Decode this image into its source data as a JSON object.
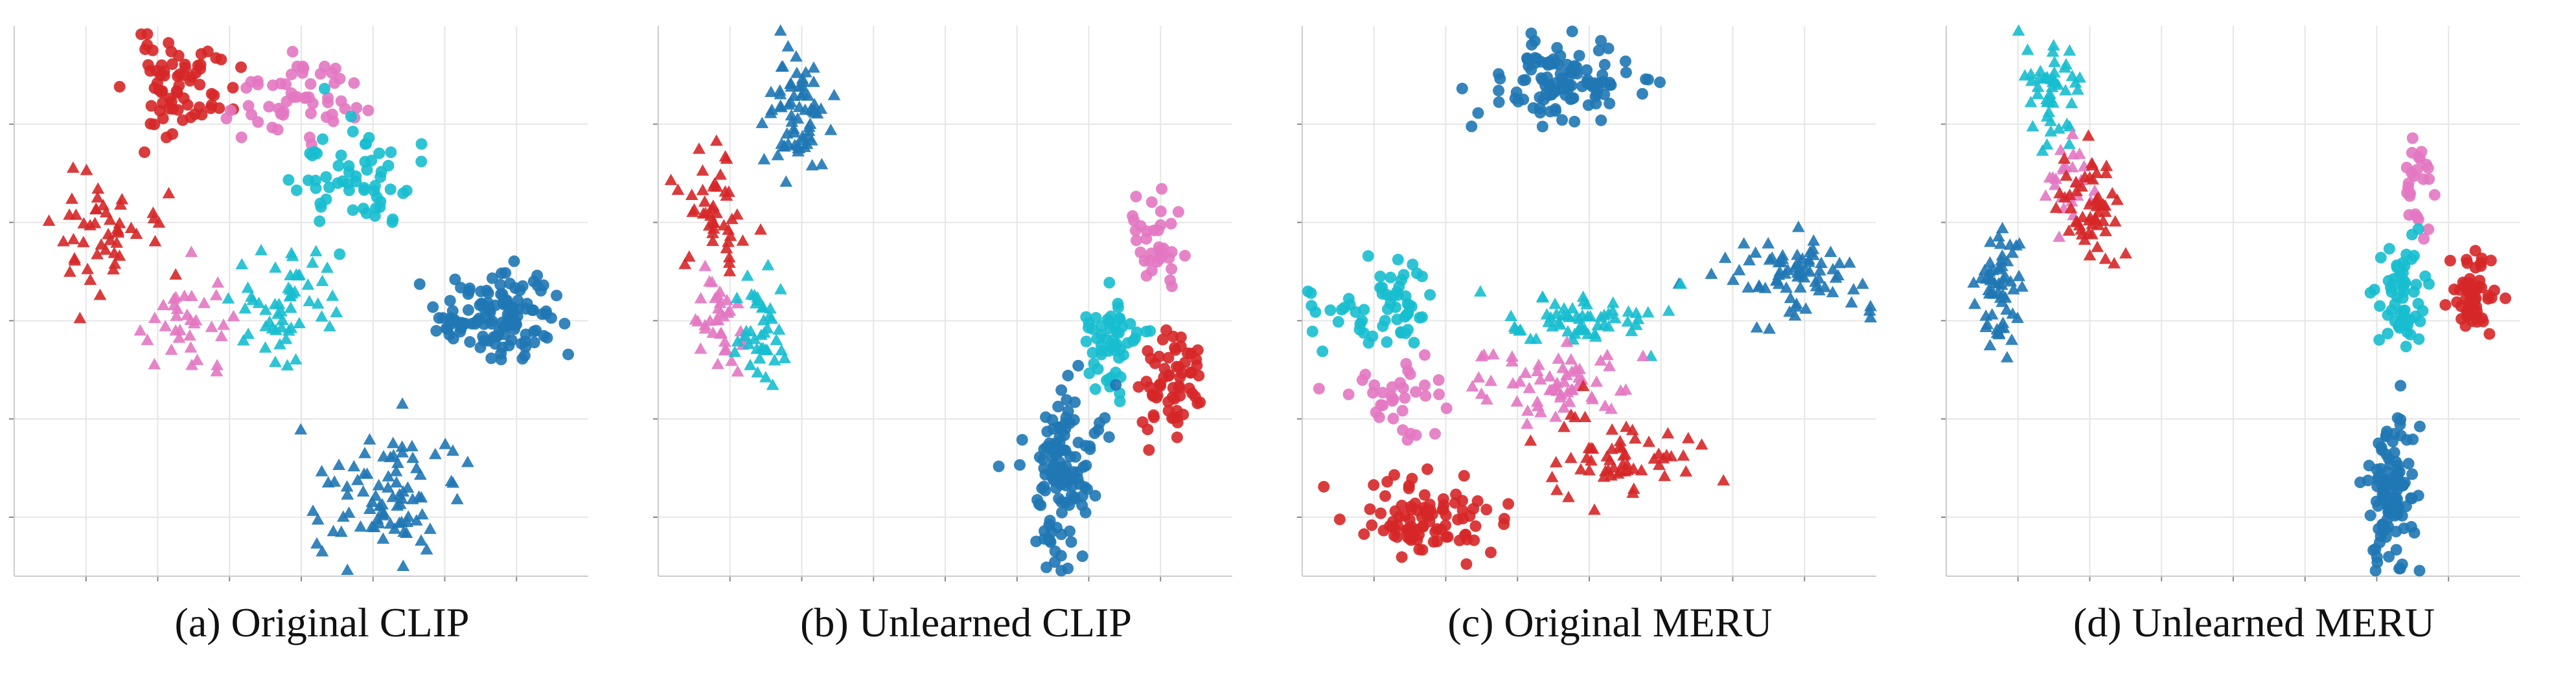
{
  "figure": {
    "description_note": "t-SNE style embeddings, four panels, two classes of markers per color",
    "captions": [
      "(a) Original CLIP",
      "(b) Unlearned CLIP",
      "(c) Original MERU",
      "(d) Unlearned MERU"
    ]
  },
  "colors": {
    "blue": "#1f77b4",
    "red": "#d62728",
    "pink": "#e377c2",
    "cyan": "#17becf",
    "grid": "#e6e6e6",
    "axis": "#cccccc"
  },
  "chart_data": [
    {
      "type": "scatter",
      "title": "(a) Original CLIP",
      "xlabel": "",
      "ylabel": "",
      "xlim": [
        0,
        100
      ],
      "ylim": [
        0,
        100
      ],
      "grid": true,
      "clusters": [
        {
          "color": "red",
          "marker": "circle",
          "cx": 29,
          "cy": 89,
          "sx": 4.5,
          "sy": 4.2,
          "n": 70,
          "seed": 11
        },
        {
          "color": "pink",
          "marker": "circle",
          "cx": 49,
          "cy": 87,
          "sx": 5.5,
          "sy": 3.5,
          "n": 55,
          "seed": 12
        },
        {
          "color": "red",
          "marker": "triangle",
          "cx": 14,
          "cy": 62,
          "sx": 5.5,
          "sy": 5.5,
          "n": 50,
          "seed": 13
        },
        {
          "color": "cyan",
          "marker": "circle",
          "cx": 60,
          "cy": 72,
          "sx": 5,
          "sy": 5,
          "n": 60,
          "seed": 14
        },
        {
          "color": "pink",
          "marker": "triangle",
          "cx": 30,
          "cy": 46,
          "sx": 4,
          "sy": 6,
          "n": 35,
          "seed": 15
        },
        {
          "color": "cyan",
          "marker": "triangle",
          "cx": 47,
          "cy": 49,
          "sx": 4.5,
          "sy": 5.5,
          "n": 55,
          "seed": 16
        },
        {
          "color": "blue",
          "marker": "circle",
          "cx": 84,
          "cy": 47,
          "sx": 5.5,
          "sy": 5,
          "n": 130,
          "seed": 17
        },
        {
          "color": "blue",
          "marker": "triangle",
          "cx": 65,
          "cy": 14,
          "sx": 6.5,
          "sy": 6,
          "n": 85,
          "seed": 18
        }
      ]
    },
    {
      "type": "scatter",
      "title": "(b) Unlearned CLIP",
      "xlabel": "",
      "ylabel": "",
      "xlim": [
        0,
        100
      ],
      "ylim": [
        0,
        100
      ],
      "grid": true,
      "clusters": [
        {
          "color": "blue",
          "marker": "triangle",
          "cx": 24,
          "cy": 84,
          "sx": 2.6,
          "sy": 6.5,
          "n": 70,
          "seed": 21
        },
        {
          "color": "red",
          "marker": "triangle",
          "cx": 10,
          "cy": 68,
          "sx": 2.5,
          "sy": 5.5,
          "n": 45,
          "seed": 22
        },
        {
          "color": "pink",
          "marker": "triangle",
          "cx": 10,
          "cy": 46,
          "sx": 2.2,
          "sy": 5,
          "n": 35,
          "seed": 23
        },
        {
          "color": "cyan",
          "marker": "triangle",
          "cx": 18,
          "cy": 44,
          "sx": 2.3,
          "sy": 6,
          "n": 40,
          "seed": 24
        },
        {
          "color": "pink",
          "marker": "circle",
          "cx": 86,
          "cy": 60,
          "sx": 2.5,
          "sy": 5,
          "n": 35,
          "seed": 25
        },
        {
          "color": "cyan",
          "marker": "circle",
          "cx": 79,
          "cy": 42,
          "sx": 3,
          "sy": 4.5,
          "n": 55,
          "seed": 26
        },
        {
          "color": "red",
          "marker": "circle",
          "cx": 90,
          "cy": 35,
          "sx": 3,
          "sy": 4.5,
          "n": 65,
          "seed": 27
        },
        {
          "color": "blue",
          "marker": "circle",
          "cx": 71,
          "cy": 18,
          "sx": 3.2,
          "sy": 8,
          "n": 120,
          "seed": 28
        }
      ]
    },
    {
      "type": "scatter",
      "title": "(c) Original MERU",
      "xlabel": "",
      "ylabel": "",
      "xlim": [
        0,
        100
      ],
      "ylim": [
        0,
        100
      ],
      "grid": true,
      "clusters": [
        {
          "color": "blue",
          "marker": "circle",
          "cx": 45,
          "cy": 90,
          "sx": 6,
          "sy": 3.5,
          "n": 110,
          "seed": 31
        },
        {
          "color": "blue",
          "marker": "triangle",
          "cx": 86,
          "cy": 55,
          "sx": 6.5,
          "sy": 3.5,
          "n": 75,
          "seed": 32
        },
        {
          "color": "cyan",
          "marker": "circle",
          "cx": 14,
          "cy": 49,
          "sx": 6,
          "sy": 3.5,
          "n": 60,
          "seed": 33
        },
        {
          "color": "cyan",
          "marker": "triangle",
          "cx": 48,
          "cy": 47,
          "sx": 7,
          "sy": 2.5,
          "n": 60,
          "seed": 34
        },
        {
          "color": "pink",
          "marker": "circle",
          "cx": 17,
          "cy": 32,
          "sx": 4.5,
          "sy": 3.5,
          "n": 35,
          "seed": 35
        },
        {
          "color": "pink",
          "marker": "triangle",
          "cx": 45,
          "cy": 34,
          "sx": 7,
          "sy": 3.5,
          "n": 60,
          "seed": 36
        },
        {
          "color": "red",
          "marker": "triangle",
          "cx": 56,
          "cy": 22,
          "sx": 6,
          "sy": 4,
          "n": 60,
          "seed": 37
        },
        {
          "color": "red",
          "marker": "circle",
          "cx": 22,
          "cy": 10,
          "sx": 5.5,
          "sy": 3,
          "n": 95,
          "seed": 38
        }
      ]
    },
    {
      "type": "scatter",
      "title": "(d) Unlearned MERU",
      "xlabel": "",
      "ylabel": "",
      "xlim": [
        0,
        100
      ],
      "ylim": [
        0,
        100
      ],
      "grid": true,
      "clusters": [
        {
          "color": "cyan",
          "marker": "triangle",
          "cx": 19,
          "cy": 88,
          "sx": 2.5,
          "sy": 5,
          "n": 50,
          "seed": 41
        },
        {
          "color": "pink",
          "marker": "triangle",
          "cx": 21,
          "cy": 73,
          "sx": 2,
          "sy": 3.5,
          "n": 25,
          "seed": 42
        },
        {
          "color": "red",
          "marker": "triangle",
          "cx": 25,
          "cy": 66,
          "sx": 2.8,
          "sy": 6,
          "n": 55,
          "seed": 43
        },
        {
          "color": "blue",
          "marker": "triangle",
          "cx": 9,
          "cy": 52,
          "sx": 2.2,
          "sy": 6,
          "n": 60,
          "seed": 44
        },
        {
          "color": "pink",
          "marker": "circle",
          "cx": 82,
          "cy": 71,
          "sx": 1.4,
          "sy": 3.5,
          "n": 25,
          "seed": 45
        },
        {
          "color": "cyan",
          "marker": "circle",
          "cx": 80,
          "cy": 51,
          "sx": 2,
          "sy": 6,
          "n": 55,
          "seed": 46
        },
        {
          "color": "red",
          "marker": "circle",
          "cx": 92,
          "cy": 51,
          "sx": 1.7,
          "sy": 3.5,
          "n": 55,
          "seed": 47
        },
        {
          "color": "blue",
          "marker": "circle",
          "cx": 78,
          "cy": 15,
          "sx": 2.2,
          "sy": 7.5,
          "n": 110,
          "seed": 48
        }
      ]
    }
  ]
}
